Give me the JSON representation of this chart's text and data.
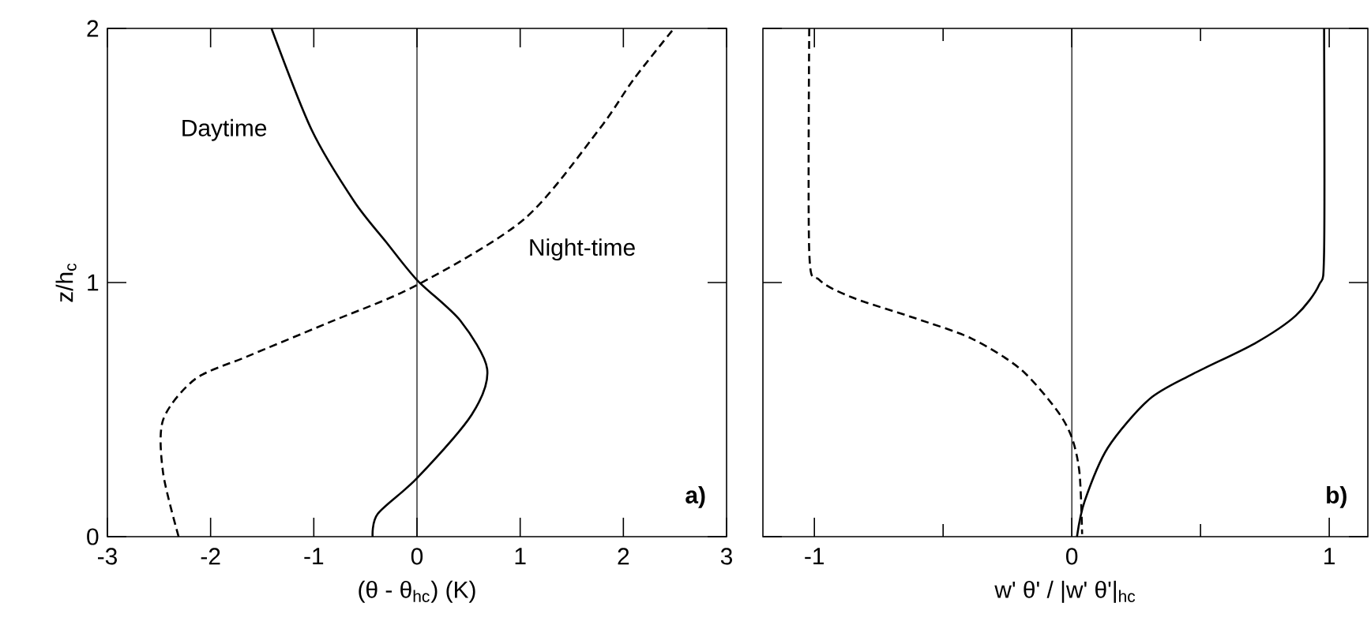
{
  "chart_data": [
    {
      "type": "line",
      "xlabel": "(θ - θ$_{hc}$) (K)",
      "ylabel": "z/h$_{c}$",
      "xlim": [
        -3,
        3
      ],
      "ylim": [
        0,
        2
      ],
      "xticks": [
        -3,
        -2,
        -1,
        0,
        1,
        2,
        3
      ],
      "yticks": [
        0,
        1,
        2
      ],
      "series": [
        {
          "name": "Daytime",
          "color": "#000000",
          "line_style": "solid",
          "x": [
            -1.41,
            -1.02,
            -0.61,
            -0.3,
            0,
            0.42,
            0.68,
            0.53,
            0,
            -0.38,
            -0.43
          ],
          "values": [
            2.0,
            1.6,
            1.32,
            1.16,
            1.01,
            0.85,
            0.66,
            0.48,
            0.23,
            0.09,
            0
          ]
        },
        {
          "name": "Night-time",
          "color": "#000000",
          "line_style": "dashed",
          "x": [
            -2.31,
            -2.46,
            -2.46,
            -2.15,
            -1.64,
            -0.87,
            0,
            1.04,
            1.76,
            2.1,
            2.49
          ],
          "values": [
            0,
            0.25,
            0.46,
            0.62,
            0.71,
            0.84,
            0.99,
            1.25,
            1.6,
            1.8,
            2.0
          ]
        }
      ],
      "ref_lines": [
        {
          "axis": "x",
          "value": 0,
          "color": "#000000"
        }
      ],
      "annotations": [
        "a)"
      ]
    },
    {
      "type": "line",
      "xlabel": "w' θ' / |w' θ'|$_{hc}$",
      "xlim": [
        -1.2,
        1.15
      ],
      "ylim": [
        0,
        2
      ],
      "xticks": [
        -1,
        {
          "value": -0.5,
          "label": null
        },
        0,
        {
          "value": 0.5,
          "label": null
        },
        1
      ],
      "yticks": [
        0,
        1,
        2
      ],
      "tick_labels": "x",
      "series": [
        {
          "color": "#000000",
          "line_style": "dashed",
          "x": [
            -1.02,
            -1.02,
            -0.98,
            -0.85,
            -0.61,
            -0.39,
            -0.2,
            -0.06,
            0,
            0.03,
            0.04
          ],
          "values": [
            2.0,
            1.12,
            1.01,
            0.94,
            0.86,
            0.78,
            0.66,
            0.5,
            0.39,
            0.25,
            0.01
          ]
        },
        {
          "color": "#000000",
          "line_style": "solid",
          "x": [
            0.98,
            0.98,
            0.96,
            0.87,
            0.71,
            0.47,
            0.3,
            0.14,
            0.05,
            0.02
          ],
          "values": [
            2.0,
            1.12,
            0.99,
            0.87,
            0.76,
            0.64,
            0.54,
            0.35,
            0.14,
            0
          ]
        }
      ],
      "ref_lines": [
        {
          "axis": "x",
          "value": 0,
          "color": "#000000"
        }
      ],
      "annotations": [
        "b)"
      ]
    }
  ]
}
